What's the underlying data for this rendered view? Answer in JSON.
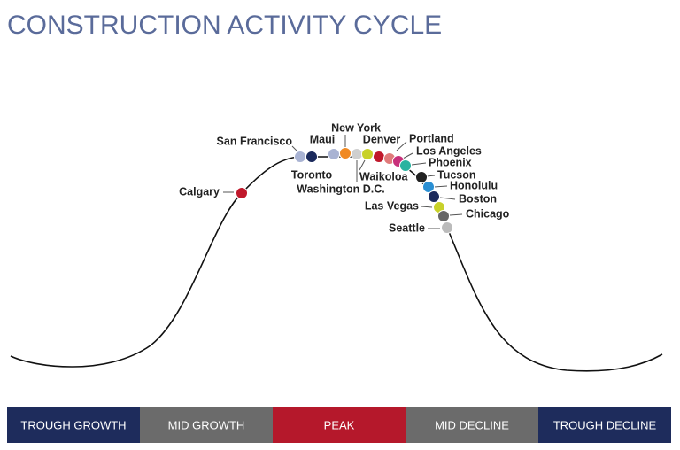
{
  "title": "CONSTRUCTION ACTIVITY CYCLE",
  "cities": [
    {
      "label": "Calgary",
      "color": "#c0182b"
    },
    {
      "label": "San Francisco",
      "color": "#a9b3d3"
    },
    {
      "label": "Toronto",
      "color": "#1b2a5c"
    },
    {
      "label": "Maui",
      "color": "#a9b3d3"
    },
    {
      "label": "New York",
      "color": "#f08a24"
    },
    {
      "label": "Washington D.C.",
      "color": "#cfcfcf"
    },
    {
      "label": "Waikoloa",
      "color": "#c8d12a"
    },
    {
      "label": "Denver",
      "color": "#c0182b"
    },
    {
      "label": "Portland",
      "color": "#e07a7a"
    },
    {
      "label": "Los Angeles",
      "color": "#c8307a"
    },
    {
      "label": "Phoenix",
      "color": "#2ab3a0"
    },
    {
      "label": "Tucson",
      "color": "#222222"
    },
    {
      "label": "Honolulu",
      "color": "#2a8fd3"
    },
    {
      "label": "Boston",
      "color": "#1b2a5c"
    },
    {
      "label": "Las Vegas",
      "color": "#c8d12a"
    },
    {
      "label": "Chicago",
      "color": "#666666"
    },
    {
      "label": "Seattle",
      "color": "#bbbbbb"
    }
  ],
  "phases": [
    {
      "label": "TROUGH GROWTH",
      "color": "#1e2c5c"
    },
    {
      "label": "MID GROWTH",
      "color": "#6b6b6b"
    },
    {
      "label": "PEAK",
      "color": "#b5182b"
    },
    {
      "label": "MID DECLINE",
      "color": "#6b6b6b"
    },
    {
      "label": "TROUGH DECLINE",
      "color": "#1e2c5c"
    }
  ]
}
